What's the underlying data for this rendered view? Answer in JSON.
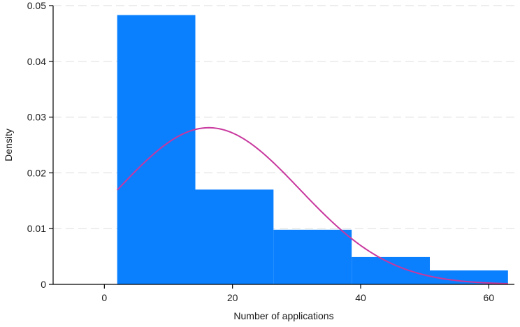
{
  "chart_data": {
    "type": "bar",
    "subtype": "histogram-with-density-curve",
    "title": "",
    "xlabel": "Number of applications",
    "ylabel": "Density",
    "xlim": [
      -8,
      64
    ],
    "ylim": [
      0,
      0.05
    ],
    "x_ticks": [
      0,
      20,
      40,
      60
    ],
    "x_tick_labels": [
      "0",
      "20",
      "40",
      "60"
    ],
    "y_ticks": [
      0,
      0.01,
      0.02,
      0.03,
      0.04,
      0.05
    ],
    "y_tick_labels": [
      "0",
      "0.01",
      "0.02",
      "0.03",
      "0.04",
      "0.05"
    ],
    "grid": {
      "y": true,
      "x": false,
      "style": "dashed"
    },
    "bins": [
      {
        "x0": 2.0,
        "x1": 14.2,
        "density": 0.0483
      },
      {
        "x0": 14.2,
        "x1": 26.4,
        "density": 0.017
      },
      {
        "x0": 26.4,
        "x1": 38.6,
        "density": 0.0098
      },
      {
        "x0": 38.6,
        "x1": 50.8,
        "density": 0.0049
      },
      {
        "x0": 50.8,
        "x1": 63.0,
        "density": 0.0025
      }
    ],
    "density_curve": {
      "type": "normal",
      "mean": 16.3,
      "sd": 14.2,
      "x_range": [
        2,
        63
      ]
    },
    "colors": {
      "bars": "#0a80ff",
      "curve": "#c8389e",
      "grid": "#e2e2e2",
      "axis": "#000000"
    }
  }
}
